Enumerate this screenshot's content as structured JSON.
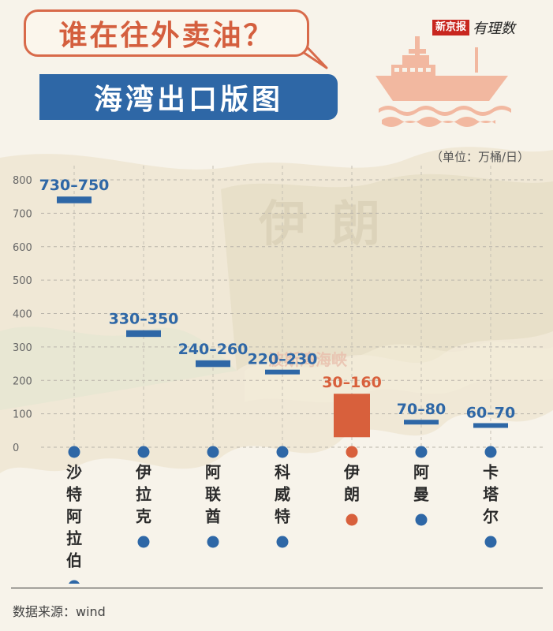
{
  "header": {
    "title": "谁在往外卖油？",
    "subtitle": "海湾出口版图",
    "brand_name": "新京报",
    "brand_tagline": "有理数"
  },
  "unit_note": "（单位：万桶/日）",
  "source_note": "数据来源：wind",
  "map_labels": {
    "country": "伊朗",
    "region": "波斯湾海峡"
  },
  "colors": {
    "primary": "#2e67a6",
    "highlight": "#d8603c",
    "title_accent": "#d45f3e",
    "ship": "#f2b8a0"
  },
  "chart_data": {
    "type": "bar",
    "subtype": "range",
    "categories": [
      "沙特阿拉伯",
      "伊拉克",
      "阿联酋",
      "科威特",
      "伊朗",
      "阿曼",
      "卡塔尔"
    ],
    "series": [
      {
        "ranges": [
          [
            730,
            750
          ],
          [
            330,
            350
          ],
          [
            240,
            260
          ],
          [
            220,
            230
          ],
          [
            30,
            160
          ],
          [
            70,
            80
          ],
          [
            60,
            70
          ]
        ]
      }
    ],
    "value_labels": [
      "730–750",
      "330–350",
      "240–260",
      "220–230",
      "30–160",
      "70–80",
      "60–70"
    ],
    "highlight_category": "伊朗",
    "ylim": [
      0,
      800
    ],
    "yticks": [
      0,
      100,
      200,
      300,
      400,
      500,
      600,
      700,
      800
    ],
    "grid": true,
    "xlabel": "",
    "ylabel": ""
  }
}
